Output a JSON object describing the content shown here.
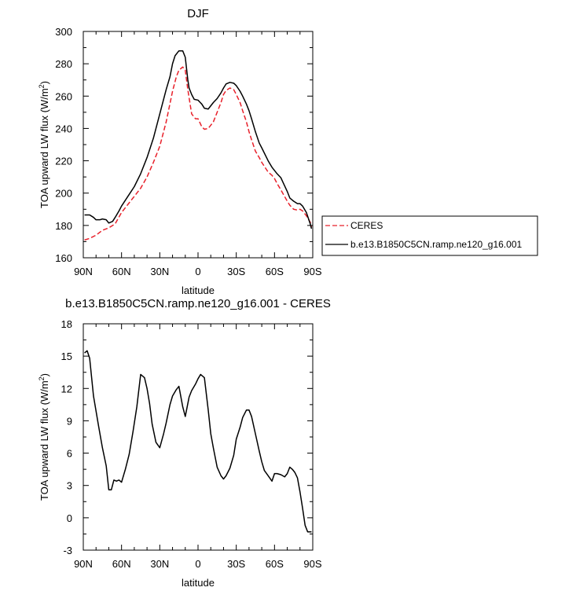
{
  "chart_data": [
    {
      "type": "line",
      "title": "DJF",
      "xlabel": "latitude",
      "ylabel": "TOA upward LW flux (W/m",
      "ylabel_sup": "2",
      "ylabel_end": ")",
      "xlim": [
        90,
        -90
      ],
      "ylim": [
        160,
        300
      ],
      "xticks": [
        90,
        60,
        30,
        0,
        -30,
        -60,
        -90
      ],
      "xtick_labels": [
        "90N",
        "60N",
        "30N",
        "0",
        "30S",
        "60S",
        "90S"
      ],
      "yticks": [
        160,
        180,
        200,
        220,
        240,
        260,
        280,
        300
      ],
      "ytick_labels": [
        "160",
        "180",
        "200",
        "220",
        "240",
        "260",
        "280",
        "300"
      ],
      "legend_placement": "outside-right",
      "series": [
        {
          "name": "CERES",
          "color": "#e8202a",
          "dash": "dashed",
          "x": [
            89,
            85,
            80,
            75,
            70,
            65,
            60,
            55,
            50,
            45,
            40,
            35,
            30,
            25,
            20,
            17,
            15,
            12,
            10,
            8,
            5,
            2,
            0,
            -3,
            -5,
            -8,
            -12,
            -15,
            -18,
            -20,
            -22,
            -25,
            -28,
            -30,
            -33,
            -35,
            -38,
            -40,
            -42,
            -45,
            -48,
            -50,
            -55,
            -58,
            -60,
            -62,
            -65,
            -70,
            -72,
            -75,
            -78,
            -80,
            -82,
            -85,
            -88,
            -89
          ],
          "y": [
            171,
            172,
            174,
            177,
            178.5,
            181,
            188,
            193,
            198,
            203,
            210,
            219,
            229,
            244,
            263,
            272,
            276,
            278,
            276,
            264,
            249,
            246,
            246,
            241,
            239.5,
            240,
            244,
            250,
            256,
            261,
            263.5,
            265,
            264,
            261,
            256,
            251,
            244,
            238,
            233,
            226,
            222,
            219,
            213,
            211,
            209,
            206,
            202,
            195,
            192.5,
            190,
            189.5,
            190,
            189,
            186,
            182,
            179
          ]
        },
        {
          "name": "b.e13.B1850C5CN.ramp.ne120_g16.001",
          "color": "#000000",
          "dash": "solid",
          "x": [
            89,
            85,
            82,
            80,
            77,
            75,
            72,
            70,
            67,
            65,
            62,
            60,
            55,
            50,
            45,
            40,
            35,
            30,
            25,
            22,
            20,
            18,
            15,
            12,
            10,
            8,
            7,
            5,
            3,
            0,
            -3,
            -5,
            -8,
            -10,
            -12,
            -15,
            -18,
            -20,
            -22,
            -25,
            -28,
            -30,
            -33,
            -35,
            -38,
            -40,
            -42,
            -45,
            -48,
            -50,
            -55,
            -58,
            -60,
            -62,
            -65,
            -70,
            -72,
            -75,
            -78,
            -80,
            -82,
            -85,
            -88,
            -89
          ],
          "y": [
            186.5,
            186.5,
            185,
            183.5,
            183.5,
            184,
            183.5,
            181.5,
            182.5,
            185,
            189,
            192,
            198,
            204,
            212,
            222,
            234,
            249,
            264,
            272,
            280,
            285,
            288,
            288,
            284,
            270,
            265,
            261,
            258,
            257.5,
            255,
            252.5,
            252,
            254,
            256,
            258.5,
            262,
            265,
            267.5,
            268.5,
            268,
            266.5,
            263,
            260,
            255,
            251,
            246,
            238,
            231,
            228,
            220,
            216,
            214,
            212,
            209.5,
            201,
            197,
            195,
            193.5,
            193.5,
            192,
            188,
            181,
            178
          ]
        }
      ]
    },
    {
      "type": "line",
      "title": "b.e13.B1850C5CN.ramp.ne120_g16.001 - CERES",
      "xlabel": "latitude",
      "ylabel": "TOA upward LW flux (W/m",
      "ylabel_sup": "2",
      "ylabel_end": ")",
      "xlim": [
        90,
        -90
      ],
      "ylim": [
        -3,
        18
      ],
      "xticks": [
        90,
        60,
        30,
        0,
        -30,
        -60,
        -90
      ],
      "xtick_labels": [
        "90N",
        "60N",
        "30N",
        "0",
        "30S",
        "60S",
        "90S"
      ],
      "yticks": [
        -3,
        0,
        3,
        6,
        9,
        12,
        15,
        18
      ],
      "ytick_labels": [
        "-3",
        "0",
        "3",
        "6",
        "9",
        "12",
        "15",
        "18"
      ],
      "series": [
        {
          "color": "#000000",
          "dash": "solid",
          "x": [
            89,
            87,
            85,
            82,
            78,
            75,
            72,
            70,
            68,
            66,
            64,
            62,
            60,
            57,
            54,
            51,
            48,
            45,
            42,
            40,
            38,
            36,
            33,
            30,
            27,
            25,
            22,
            20,
            17,
            15,
            12,
            10,
            7,
            5,
            2,
            0,
            -2,
            -5,
            -8,
            -10,
            -12,
            -15,
            -18,
            -20,
            -22,
            -25,
            -28,
            -30,
            -33,
            -35,
            -38,
            -40,
            -42,
            -45,
            -48,
            -50,
            -52,
            -55,
            -58,
            -60,
            -62,
            -65,
            -68,
            -70,
            -72,
            -74,
            -76,
            -78,
            -80,
            -82,
            -84,
            -86,
            -89
          ],
          "y": [
            15.3,
            15.5,
            14.8,
            11.3,
            8.5,
            6.5,
            4.8,
            2.6,
            2.6,
            3.5,
            3.4,
            3.5,
            3.3,
            4.5,
            5.9,
            8.0,
            10.3,
            13.3,
            13.0,
            12.0,
            10.6,
            8.7,
            7.0,
            6.5,
            7.8,
            8.8,
            10.5,
            11.3,
            11.9,
            12.2,
            10.3,
            9.4,
            11.2,
            11.8,
            12.4,
            12.9,
            13.3,
            13.0,
            10.0,
            7.8,
            6.5,
            4.7,
            3.9,
            3.6,
            3.9,
            4.6,
            5.8,
            7.3,
            8.4,
            9.3,
            10.0,
            10.0,
            9.4,
            7.8,
            6.2,
            5.2,
            4.4,
            3.9,
            3.4,
            4.1,
            4.1,
            4.0,
            3.8,
            4.1,
            4.7,
            4.5,
            4.2,
            3.7,
            2.4,
            0.9,
            -0.7,
            -1.3,
            -1.3
          ]
        }
      ]
    }
  ]
}
